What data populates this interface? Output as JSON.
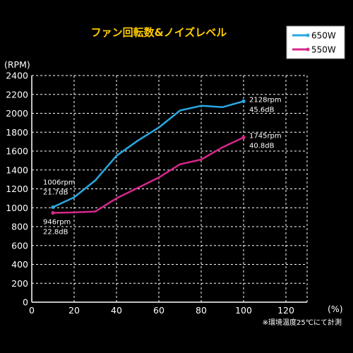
{
  "chart_data": {
    "type": "line",
    "title": "ファン回転数&ノイズレベル",
    "y_unit_label": "(RPM)",
    "x_unit_label": "(%)",
    "note": "※環境温度25℃にて計測",
    "xlim": [
      0,
      130
    ],
    "ylim": [
      0,
      2400
    ],
    "x_ticks": [
      0,
      20,
      40,
      60,
      80,
      100,
      120
    ],
    "y_ticks": [
      0,
      200,
      400,
      600,
      800,
      1000,
      1200,
      1400,
      1600,
      1800,
      2000,
      2200,
      2400
    ],
    "grid": true,
    "legend_position": "top-right",
    "colors": {
      "background": "#000000",
      "title": "#ffcc00",
      "grid": "#ffffff",
      "axis": "#ffffff"
    },
    "series": [
      {
        "name": "650W",
        "color": "#29a8e0",
        "x": [
          10,
          20,
          30,
          40,
          50,
          60,
          70,
          80,
          90,
          100
        ],
        "y": [
          1006,
          1110,
          1290,
          1550,
          1710,
          1850,
          2030,
          2080,
          2065,
          2128
        ]
      },
      {
        "name": "550W",
        "color": "#d6278a",
        "x": [
          10,
          20,
          30,
          40,
          50,
          60,
          70,
          80,
          90,
          100
        ],
        "y": [
          946,
          950,
          960,
          1100,
          1210,
          1320,
          1460,
          1510,
          1640,
          1745
        ]
      }
    ],
    "annotations": [
      {
        "x": 10,
        "y": 1006,
        "lines": [
          "1006rpm",
          "21.7dB"
        ],
        "position": "above-left"
      },
      {
        "x": 10,
        "y": 946,
        "lines": [
          "946rpm",
          "22.8dB"
        ],
        "position": "below"
      },
      {
        "x": 100,
        "y": 2128,
        "lines": [
          "2128rpm",
          "45.6dB"
        ],
        "position": "right"
      },
      {
        "x": 100,
        "y": 1745,
        "lines": [
          "1745rpm",
          "40.8dB"
        ],
        "position": "right"
      }
    ]
  }
}
